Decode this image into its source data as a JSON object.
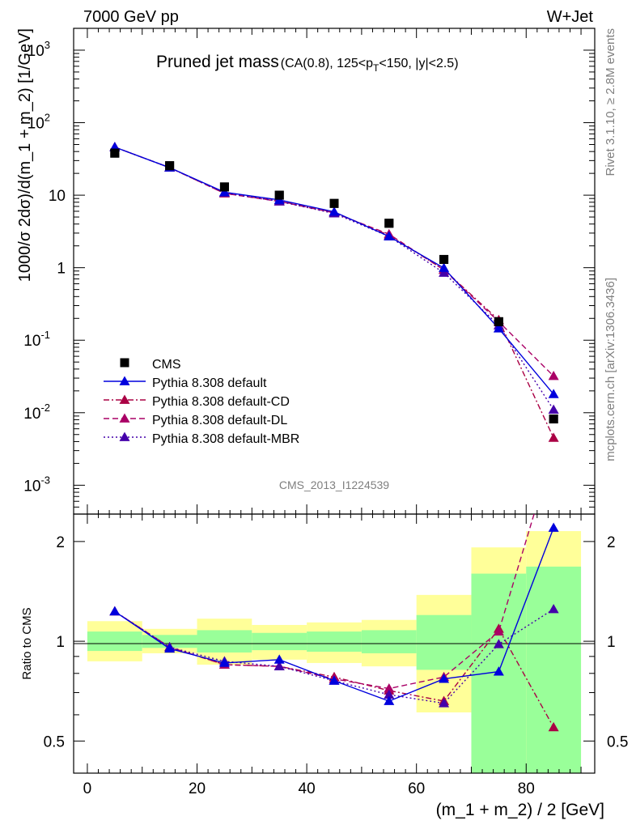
{
  "header": {
    "left": "7000 GeV pp",
    "right": "W+Jet"
  },
  "side_labels": {
    "rivet": "Rivet 3.1.10, ≥ 2.8M events",
    "mcplots": "mcplots.cern.ch [arXiv:1306.3436]"
  },
  "chart_data": [
    {
      "type": "line",
      "title_main": "Pruned jet mass",
      "title_sub": "(CA(0.8), 125<p_T<150, |y|<2.5)",
      "ylabel": "1000/σ 2dσ)/d(m_1 + m_2) [1/GeV]",
      "watermark": "CMS_2013_I1224539",
      "yscale": "log",
      "ylim": [
        0.0004,
        2000
      ],
      "xlim": [
        -2.5,
        92.5
      ],
      "x": [
        5,
        15,
        25,
        35,
        45,
        55,
        65,
        75,
        85
      ],
      "series": [
        {
          "name": "CMS",
          "style": "square",
          "color": "#000000",
          "values": [
            38,
            25.5,
            13,
            10,
            7.7,
            4.1,
            1.3,
            0.18,
            0.0082
          ]
        },
        {
          "name": "Pythia 8.308 default",
          "style": "solid",
          "color": "#0000dd",
          "values": [
            46,
            24,
            11,
            8.6,
            5.9,
            2.7,
            0.99,
            0.145,
            0.018
          ]
        },
        {
          "name": "Pythia 8.308 default-CD",
          "style": "dashdot",
          "color": "#aa0044",
          "values": [
            46,
            24,
            10.6,
            8.3,
            5.8,
            2.8,
            0.94,
            0.19,
            0.0045
          ]
        },
        {
          "name": "Pythia 8.308 default-DL",
          "style": "dashed",
          "color": "#aa0066",
          "values": [
            46,
            24,
            10.6,
            8.2,
            5.7,
            2.9,
            0.93,
            0.18,
            0.032
          ]
        },
        {
          "name": "Pythia 8.308 default-MBR",
          "style": "dotted",
          "color": "#4400aa",
          "values": [
            46,
            24,
            10.8,
            8.2,
            5.6,
            2.7,
            0.85,
            0.16,
            0.011
          ]
        }
      ],
      "yticks": [
        "10^-3",
        "10^-2",
        "10^-1",
        "1",
        "10",
        "10^2",
        "10^3"
      ]
    },
    {
      "type": "line",
      "ylabel": "Ratio to CMS",
      "xlabel": "(m_1 + m_2) / 2 [GeV]",
      "yscale": "log",
      "ylim": [
        0.4,
        2.42
      ],
      "xlim": [
        -2.5,
        92.5
      ],
      "xticks": [
        0,
        20,
        40,
        60,
        80
      ],
      "yticks": [
        0.5,
        1,
        2
      ],
      "bands": [
        {
          "x0": 0,
          "x1": 10,
          "green": [
            0.935,
            1.07
          ],
          "yellow": [
            0.87,
            1.15
          ]
        },
        {
          "x0": 10,
          "x1": 20,
          "green": [
            0.955,
            1.045
          ],
          "yellow": [
            0.92,
            1.09
          ]
        },
        {
          "x0": 20,
          "x1": 30,
          "green": [
            0.925,
            1.08
          ],
          "yellow": [
            0.85,
            1.17
          ]
        },
        {
          "x0": 30,
          "x1": 40,
          "green": [
            0.94,
            1.06
          ],
          "yellow": [
            0.88,
            1.12
          ]
        },
        {
          "x0": 40,
          "x1": 50,
          "green": [
            0.93,
            1.07
          ],
          "yellow": [
            0.86,
            1.14
          ]
        },
        {
          "x0": 50,
          "x1": 60,
          "green": [
            0.92,
            1.08
          ],
          "yellow": [
            0.84,
            1.16
          ]
        },
        {
          "x0": 60,
          "x1": 70,
          "green": [
            0.82,
            1.2
          ],
          "yellow": [
            0.61,
            1.38
          ]
        },
        {
          "x0": 70,
          "x1": 80,
          "green": [
            0.4,
            1.6
          ],
          "yellow": [
            0.4,
            1.92
          ]
        },
        {
          "x0": 80,
          "x1": 90,
          "green": [
            0.4,
            1.68
          ],
          "yellow": [
            0.4,
            2.15
          ]
        }
      ],
      "series": [
        {
          "name": "Pythia 8.308 default",
          "style": "solid",
          "color": "#0000dd",
          "values": [
            1.23,
            0.95,
            0.86,
            0.88,
            0.76,
            0.66,
            0.77,
            0.81,
            2.2
          ]
        },
        {
          "name": "Pythia 8.308 default-CD",
          "style": "dashdot",
          "color": "#aa0044",
          "values": [
            1.23,
            0.96,
            0.85,
            0.84,
            0.78,
            0.71,
            0.66,
            1.09,
            0.55
          ]
        },
        {
          "name": "Pythia 8.308 default-DL",
          "style": "dashed",
          "color": "#aa0066",
          "values": [
            1.23,
            0.96,
            0.85,
            0.84,
            0.77,
            0.72,
            0.78,
            1.07,
            3.8
          ]
        },
        {
          "name": "Pythia 8.308 default-MBR",
          "style": "dotted",
          "color": "#4400aa",
          "values": [
            1.23,
            0.96,
            0.87,
            0.84,
            0.76,
            0.69,
            0.65,
            0.98,
            1.25
          ]
        }
      ]
    }
  ]
}
